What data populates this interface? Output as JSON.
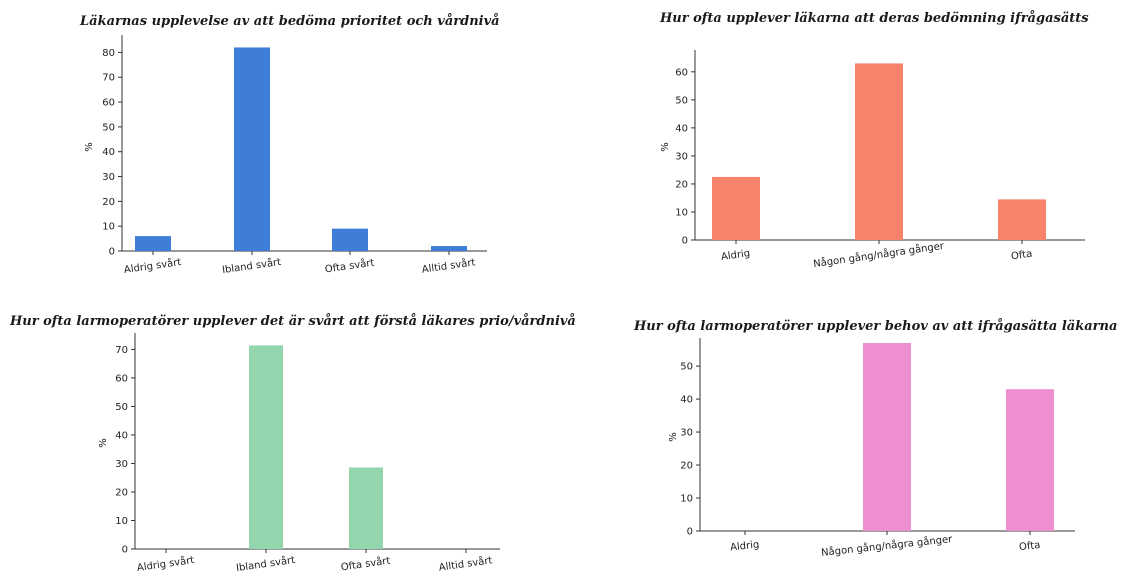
{
  "chart_data": [
    {
      "type": "bar",
      "title": "Läkarnas upplevelse av att bedöma prioritet och vårdnivå",
      "categories": [
        "Aldrig svårt",
        "Ibland svårt",
        "Ofta svårt",
        "Alltid svårt"
      ],
      "values": [
        6,
        82,
        9,
        2
      ],
      "ylabel": "%",
      "ylim": [
        0,
        85
      ],
      "yticks": [
        0,
        10,
        20,
        30,
        40,
        50,
        60,
        70,
        80
      ],
      "color": "#3f7ed8"
    },
    {
      "type": "bar",
      "title": "Hur ofta upplever läkarna att deras bedömning ifrågasätts",
      "categories": [
        "Aldrig",
        "Någon gång/några gånger",
        "Ofta"
      ],
      "values": [
        22.5,
        63,
        14.5
      ],
      "ylabel": "%",
      "ylim": [
        0,
        66
      ],
      "yticks": [
        0,
        10,
        20,
        30,
        40,
        50,
        60
      ],
      "color": "#f7836b"
    },
    {
      "type": "bar",
      "title": "Hur ofta larmoperatörer upplever det är svårt att förstå läkares prio/vårdnivå",
      "categories": [
        "Aldrig svårt",
        "Ibland svårt",
        "Ofta svårt",
        "Alltid svårt"
      ],
      "values": [
        0,
        71.4,
        28.6,
        0
      ],
      "ylabel": "%",
      "ylim": [
        0,
        74
      ],
      "yticks": [
        0,
        10,
        20,
        30,
        40,
        50,
        60,
        70
      ],
      "color": "#93d6ad"
    },
    {
      "type": "bar",
      "title": "Hur ofta larmoperatörer upplever behov av att ifrågasätta läkarna",
      "categories": [
        "Aldrig",
        "Någon gång/några gånger",
        "Ofta"
      ],
      "values": [
        0,
        57,
        43
      ],
      "ylabel": "%",
      "ylim": [
        0,
        57
      ],
      "yticks": [
        0,
        10,
        20,
        30,
        40,
        50
      ],
      "color": "#ee8fd2"
    }
  ]
}
